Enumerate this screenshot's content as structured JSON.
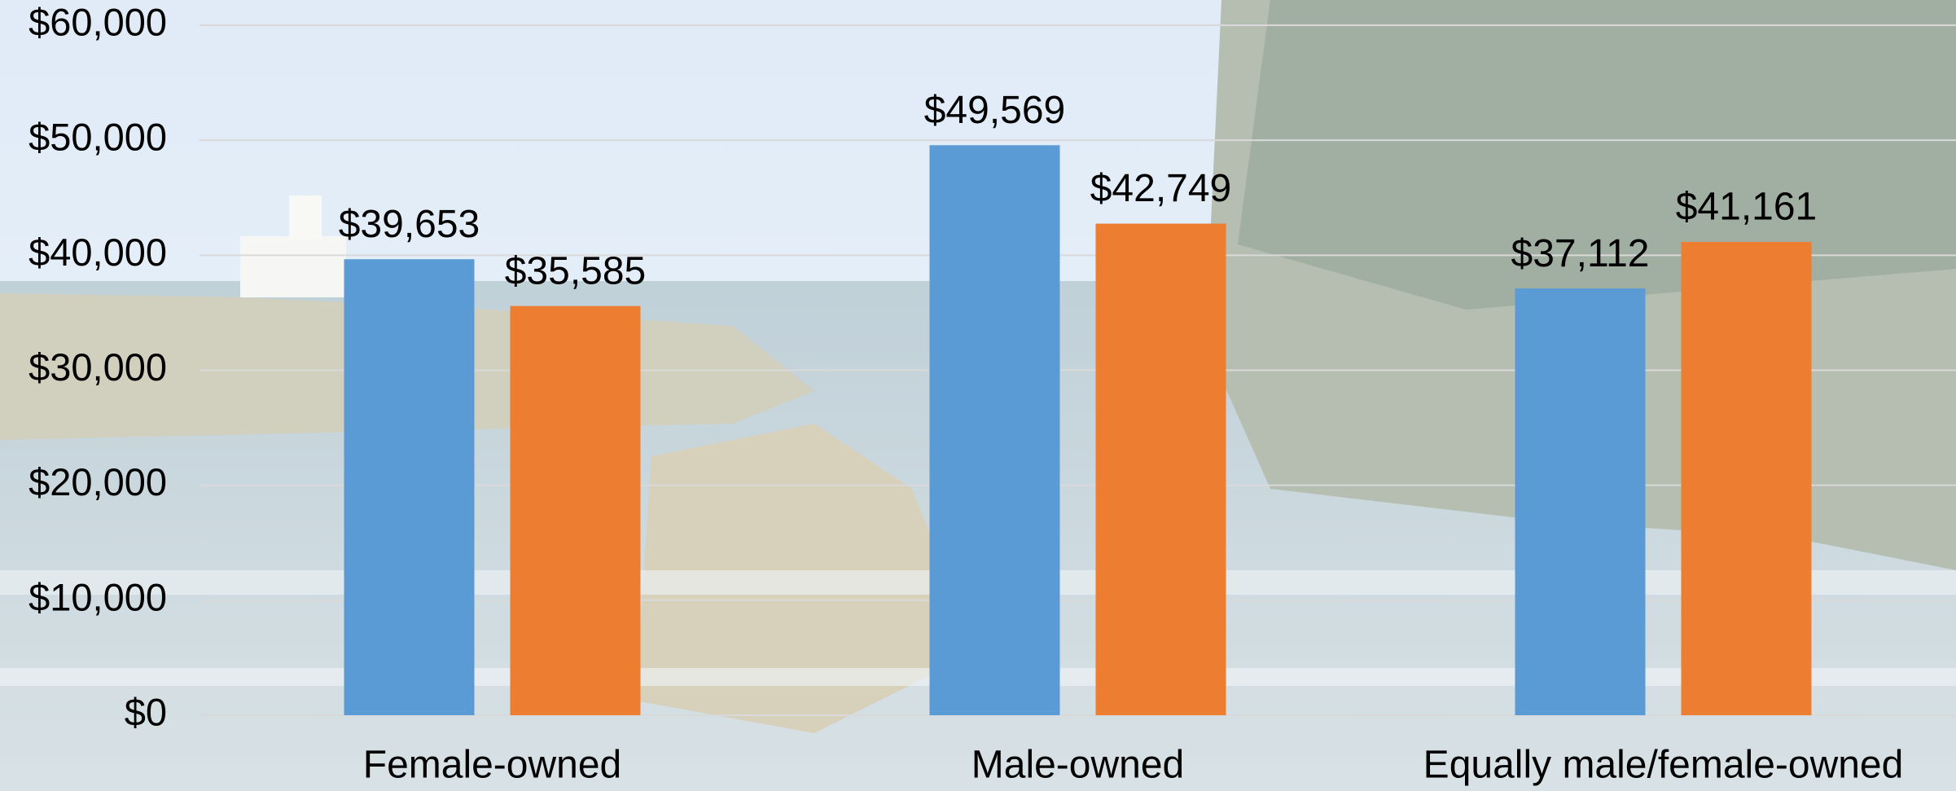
{
  "chart_data": {
    "type": "bar",
    "categories": [
      "Female-owned",
      "Male-owned",
      "Equally male/female-owned"
    ],
    "series": [
      {
        "color": "#5b9bd5",
        "values": [
          39653,
          49569,
          37112
        ],
        "value_labels": [
          "$39,653",
          "$49,569",
          "$37,112"
        ]
      },
      {
        "color": "#ed7d31",
        "values": [
          35585,
          42749,
          41161
        ],
        "value_labels": [
          "$35,585",
          "$42,749",
          "$41,161"
        ]
      }
    ],
    "ylim": [
      0,
      60000
    ],
    "yticks": [
      {
        "value": 0,
        "label": "$0"
      },
      {
        "value": 10000,
        "label": "$10,000"
      },
      {
        "value": 20000,
        "label": "$20,000"
      },
      {
        "value": 30000,
        "label": "$30,000"
      },
      {
        "value": 40000,
        "label": "$40,000"
      },
      {
        "value": 50000,
        "label": "$50,000"
      },
      {
        "value": 60000,
        "label": "$60,000"
      }
    ],
    "grid": true
  }
}
